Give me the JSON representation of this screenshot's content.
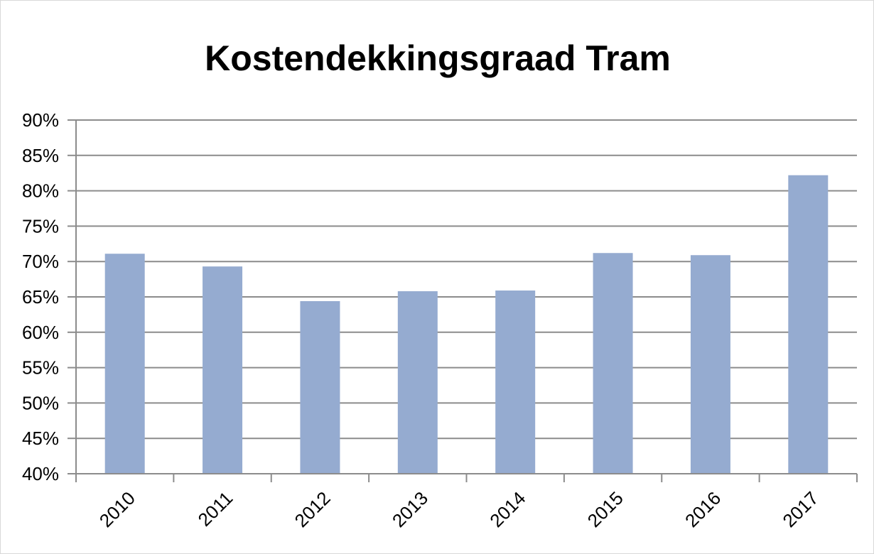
{
  "chart_data": {
    "type": "bar",
    "title": "Kostendekkingsgraad Tram",
    "xlabel": "",
    "ylabel": "",
    "categories": [
      "2010",
      "2011",
      "2012",
      "2013",
      "2014",
      "2015",
      "2016",
      "2017"
    ],
    "values": [
      71.1,
      69.3,
      64.4,
      65.8,
      65.9,
      71.2,
      70.9,
      82.2
    ],
    "ylim": [
      40,
      90
    ],
    "yticks": [
      40,
      45,
      50,
      55,
      60,
      65,
      70,
      75,
      80,
      85,
      90
    ],
    "ytick_labels": [
      "40%",
      "45%",
      "50%",
      "55%",
      "60%",
      "65%",
      "70%",
      "75%",
      "80%",
      "85%",
      "90%"
    ],
    "value_unit": "%",
    "grid": true,
    "legend": "none",
    "colors": {
      "bar": "#95abd0",
      "grid": "#8c8c8c",
      "axis": "#8c8c8c"
    }
  }
}
